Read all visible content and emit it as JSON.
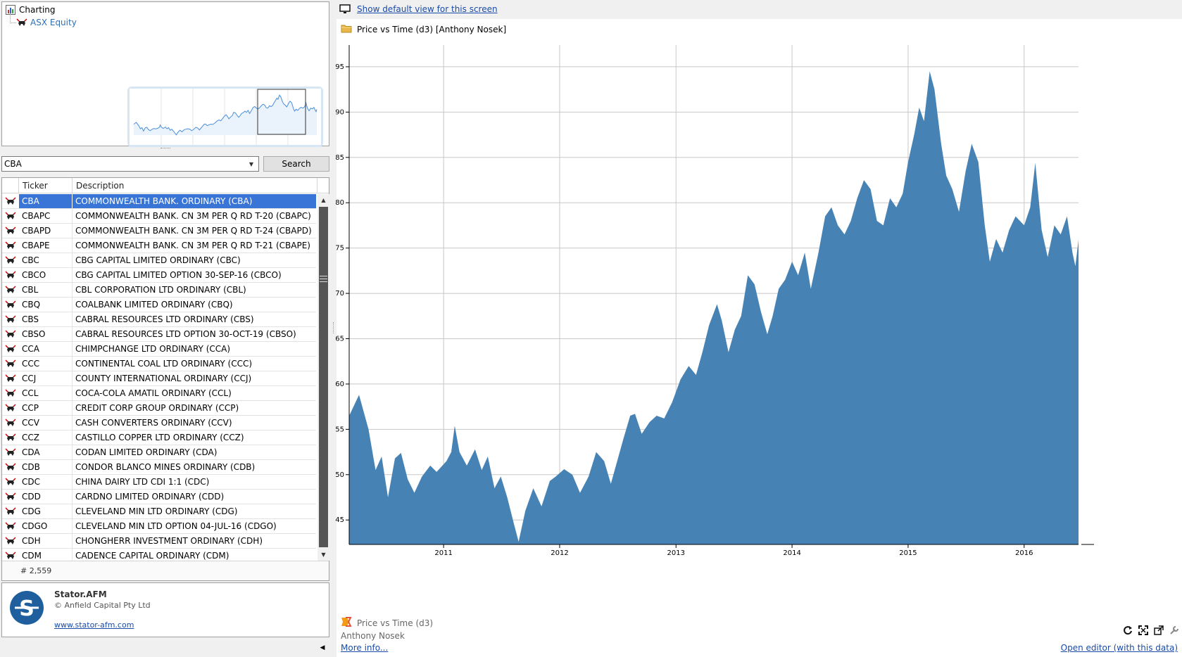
{
  "tree": {
    "root_label": "Charting",
    "child_label": "ASX Equity"
  },
  "search": {
    "ticker_value": "CBA",
    "button_label": "Search"
  },
  "grid": {
    "columns": [
      "Ticker",
      "Description"
    ],
    "rows": [
      {
        "ticker": "CBA",
        "description": "COMMONWEALTH BANK.  ORDINARY (CBA)"
      },
      {
        "ticker": "CBAPC",
        "description": "COMMONWEALTH BANK.  CN 3M PER Q RD T-20 (CBAPC)"
      },
      {
        "ticker": "CBAPD",
        "description": "COMMONWEALTH BANK.  CN 3M PER Q RD T-24 (CBAPD)"
      },
      {
        "ticker": "CBAPE",
        "description": "COMMONWEALTH BANK.  CN 3M PER Q RD T-21 (CBAPE)"
      },
      {
        "ticker": "CBC",
        "description": "CBG CAPITAL LIMITED  ORDINARY (CBC)"
      },
      {
        "ticker": "CBCO",
        "description": "CBG CAPITAL LIMITED  OPTION 30-SEP-16 (CBCO)"
      },
      {
        "ticker": "CBL",
        "description": "CBL CORPORATION LTD  ORDINARY (CBL)"
      },
      {
        "ticker": "CBQ",
        "description": "COALBANK LIMITED  ORDINARY (CBQ)"
      },
      {
        "ticker": "CBS",
        "description": "CABRAL RESOURCES LTD  ORDINARY (CBS)"
      },
      {
        "ticker": "CBSO",
        "description": "CABRAL RESOURCES LTD  OPTION 30-OCT-19 (CBSO)"
      },
      {
        "ticker": "CCA",
        "description": "CHIMPCHANGE LTD  ORDINARY (CCA)"
      },
      {
        "ticker": "CCC",
        "description": "CONTINENTAL COAL LTD  ORDINARY (CCC)"
      },
      {
        "ticker": "CCJ",
        "description": "COUNTY INTERNATIONAL  ORDINARY (CCJ)"
      },
      {
        "ticker": "CCL",
        "description": "COCA-COLA AMATIL  ORDINARY (CCL)"
      },
      {
        "ticker": "CCP",
        "description": "CREDIT CORP GROUP  ORDINARY (CCP)"
      },
      {
        "ticker": "CCV",
        "description": "CASH CONVERTERS  ORDINARY (CCV)"
      },
      {
        "ticker": "CCZ",
        "description": "CASTILLO COPPER LTD  ORDINARY (CCZ)"
      },
      {
        "ticker": "CDA",
        "description": "CODAN LIMITED  ORDINARY (CDA)"
      },
      {
        "ticker": "CDB",
        "description": "CONDOR BLANCO MINES  ORDINARY (CDB)"
      },
      {
        "ticker": "CDC",
        "description": "CHINA DAIRY LTD  CDI 1:1 (CDC)"
      },
      {
        "ticker": "CDD",
        "description": "CARDNO LIMITED  ORDINARY (CDD)"
      },
      {
        "ticker": "CDG",
        "description": "CLEVELAND MIN LTD  ORDINARY (CDG)"
      },
      {
        "ticker": "CDGO",
        "description": "CLEVELAND MIN LTD  OPTION 04-JUL-16 (CDGO)"
      },
      {
        "ticker": "CDH",
        "description": "CHONGHERR INVESTMENT  ORDINARY (CDH)"
      },
      {
        "ticker": "CDM",
        "description": "CADENCE CAPITAL  ORDINARY (CDM)"
      }
    ],
    "selected_index": 0,
    "count_text": "# 2,559"
  },
  "about": {
    "title": "Stator.AFM",
    "copyright": "© Anfield Capital Pty Ltd",
    "link": "www.stator-afm.com"
  },
  "toolbar": {
    "default_view_link": "Show default view for this screen"
  },
  "view": {
    "title": "Price vs Time (d3) [Anthony Nosek]"
  },
  "footer": {
    "chart_name": "Price vs Time (d3)",
    "author": "Anthony Nosek",
    "more_info": "More info...",
    "open_editor": "Open editor (with this data)"
  },
  "colors": {
    "area_fill": "#4682b4",
    "selection": "#3875d7",
    "link": "#1a4ba8",
    "thumbnail_line": "#4a90d9"
  },
  "icons": {
    "tree_root": "chart-icon",
    "tree_child": "bull-icon",
    "row": "bull-icon",
    "top_bar": "monitor-icon",
    "title": "folder-icon",
    "footer": "d3-icon",
    "tools": [
      "refresh-icon",
      "fullscreen-icon",
      "popout-icon",
      "wrench-icon"
    ]
  },
  "chart_data": {
    "type": "area",
    "title": "",
    "xlabel": "",
    "ylabel": "",
    "x_ticks": [
      "2011",
      "2012",
      "2013",
      "2014",
      "2015",
      "2016"
    ],
    "y_ticks": [
      45,
      50,
      55,
      60,
      65,
      70,
      75,
      80,
      85,
      90,
      95
    ],
    "xlim": [
      "2010-03-10",
      "2016-06-20"
    ],
    "ylim": [
      42.3,
      97.4
    ],
    "grid": true,
    "series": [
      {
        "points": [
          [
            "2010-03-10",
            56.5
          ],
          [
            "2010-04-10",
            58.8
          ],
          [
            "2010-05-10",
            55.0
          ],
          [
            "2010-06-01",
            50.5
          ],
          [
            "2010-06-20",
            52.0
          ],
          [
            "2010-07-10",
            47.5
          ],
          [
            "2010-08-01",
            51.8
          ],
          [
            "2010-08-20",
            52.4
          ],
          [
            "2010-09-10",
            49.5
          ],
          [
            "2010-10-01",
            48.0
          ],
          [
            "2010-10-25",
            49.8
          ],
          [
            "2010-11-20",
            51.0
          ],
          [
            "2010-12-10",
            50.3
          ],
          [
            "2011-01-10",
            51.5
          ],
          [
            "2011-01-25",
            52.5
          ],
          [
            "2011-02-05",
            55.4
          ],
          [
            "2011-02-20",
            52.5
          ],
          [
            "2011-03-15",
            51.0
          ],
          [
            "2011-04-10",
            52.8
          ],
          [
            "2011-05-01",
            50.5
          ],
          [
            "2011-05-20",
            52.0
          ],
          [
            "2011-06-10",
            48.5
          ],
          [
            "2011-06-30",
            49.8
          ],
          [
            "2011-07-20",
            47.5
          ],
          [
            "2011-08-10",
            44.6
          ],
          [
            "2011-08-25",
            42.6
          ],
          [
            "2011-09-15",
            46.0
          ],
          [
            "2011-10-10",
            48.5
          ],
          [
            "2011-11-05",
            46.5
          ],
          [
            "2011-12-01",
            49.3
          ],
          [
            "2011-12-20",
            49.8
          ],
          [
            "2012-01-15",
            50.6
          ],
          [
            "2012-02-10",
            50.0
          ],
          [
            "2012-03-05",
            48.0
          ],
          [
            "2012-04-01",
            49.8
          ],
          [
            "2012-04-25",
            52.5
          ],
          [
            "2012-05-20",
            51.5
          ],
          [
            "2012-06-10",
            49.0
          ],
          [
            "2012-06-30",
            51.5
          ],
          [
            "2012-07-20",
            54.0
          ],
          [
            "2012-08-10",
            56.5
          ],
          [
            "2012-08-25",
            56.7
          ],
          [
            "2012-09-15",
            54.5
          ],
          [
            "2012-10-10",
            55.8
          ],
          [
            "2012-11-01",
            56.5
          ],
          [
            "2012-11-25",
            56.2
          ],
          [
            "2012-12-20",
            58.0
          ],
          [
            "2013-01-15",
            60.5
          ],
          [
            "2013-02-10",
            62.0
          ],
          [
            "2013-03-05",
            61.0
          ],
          [
            "2013-03-25",
            63.5
          ],
          [
            "2013-04-15",
            66.5
          ],
          [
            "2013-05-10",
            68.8
          ],
          [
            "2013-05-25",
            67.0
          ],
          [
            "2013-06-15",
            63.5
          ],
          [
            "2013-07-05",
            66.0
          ],
          [
            "2013-07-25",
            67.5
          ],
          [
            "2013-08-15",
            72.0
          ],
          [
            "2013-09-05",
            71.0
          ],
          [
            "2013-09-25",
            68.0
          ],
          [
            "2013-10-15",
            65.5
          ],
          [
            "2013-11-01",
            67.5
          ],
          [
            "2013-11-20",
            70.5
          ],
          [
            "2013-12-10",
            71.5
          ],
          [
            "2014-01-01",
            73.5
          ],
          [
            "2014-01-20",
            72.0
          ],
          [
            "2014-02-10",
            74.5
          ],
          [
            "2014-03-01",
            70.5
          ],
          [
            "2014-03-25",
            74.5
          ],
          [
            "2014-04-15",
            78.5
          ],
          [
            "2014-05-05",
            79.5
          ],
          [
            "2014-05-25",
            77.5
          ],
          [
            "2014-06-15",
            76.5
          ],
          [
            "2014-07-05",
            78.0
          ],
          [
            "2014-07-25",
            80.5
          ],
          [
            "2014-08-15",
            82.5
          ],
          [
            "2014-09-05",
            81.5
          ],
          [
            "2014-09-25",
            78.0
          ],
          [
            "2014-10-15",
            77.5
          ],
          [
            "2014-11-05",
            80.5
          ],
          [
            "2014-11-25",
            79.5
          ],
          [
            "2014-12-15",
            81.0
          ],
          [
            "2015-01-01",
            84.5
          ],
          [
            "2015-01-20",
            87.5
          ],
          [
            "2015-02-05",
            90.5
          ],
          [
            "2015-02-20",
            89.0
          ],
          [
            "2015-03-10",
            94.5
          ],
          [
            "2015-03-25",
            92.5
          ],
          [
            "2015-04-15",
            86.5
          ],
          [
            "2015-05-01",
            83.0
          ],
          [
            "2015-05-20",
            81.5
          ],
          [
            "2015-06-10",
            79.0
          ],
          [
            "2015-07-01",
            83.5
          ],
          [
            "2015-07-20",
            86.5
          ],
          [
            "2015-08-10",
            84.5
          ],
          [
            "2015-08-30",
            77.5
          ],
          [
            "2015-09-15",
            73.5
          ],
          [
            "2015-10-05",
            76.0
          ],
          [
            "2015-10-25",
            74.5
          ],
          [
            "2015-11-15",
            77.0
          ],
          [
            "2015-12-05",
            78.5
          ],
          [
            "2016-01-01",
            77.5
          ],
          [
            "2016-01-20",
            79.5
          ],
          [
            "2016-02-05",
            84.4
          ],
          [
            "2016-02-25",
            77.0
          ],
          [
            "2016-03-15",
            74.0
          ],
          [
            "2016-04-05",
            77.5
          ],
          [
            "2016-04-25",
            76.5
          ],
          [
            "2016-05-15",
            78.5
          ],
          [
            "2016-06-01",
            74.5
          ],
          [
            "2016-06-10",
            73.0
          ],
          [
            "2016-06-20",
            75.9
          ]
        ]
      }
    ]
  }
}
